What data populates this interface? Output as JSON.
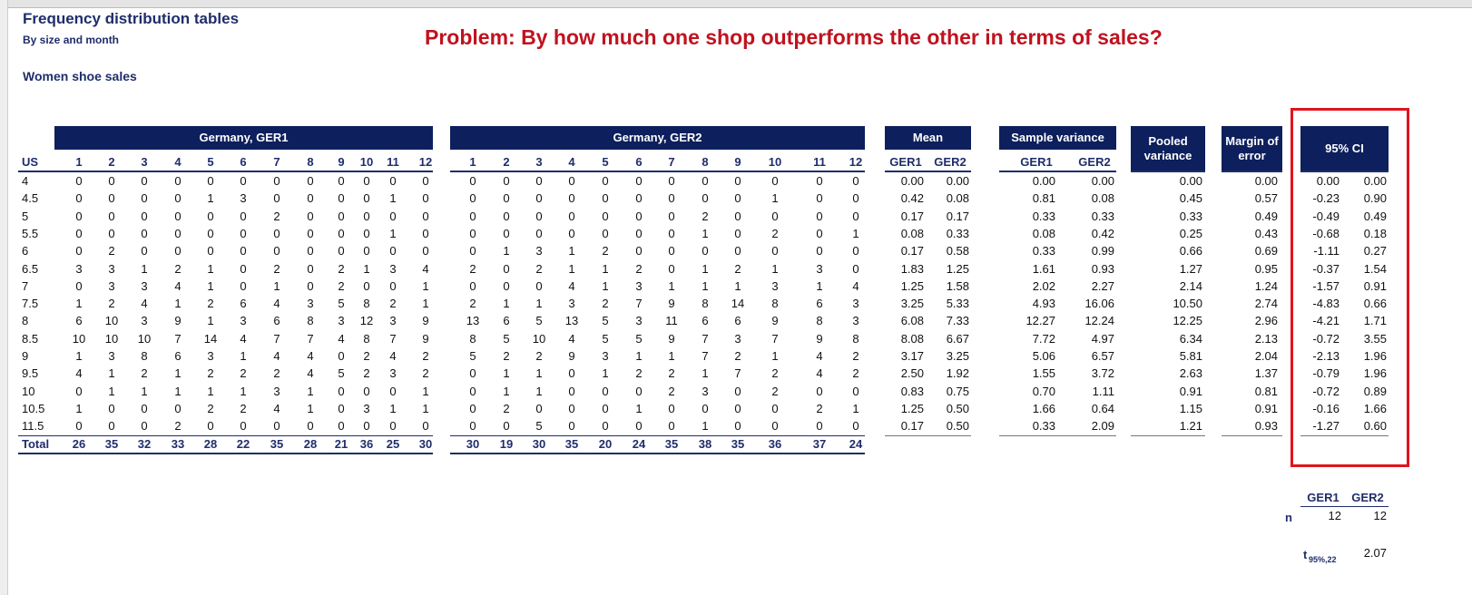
{
  "header": {
    "title": "Frequency distribution tables",
    "subtitle": "By size and month",
    "problem": "Problem: By how much one shop outperforms the other in terms of sales?",
    "section": "Women shoe sales"
  },
  "table": {
    "groups": {
      "ger1": "Germany, GER1",
      "ger2": "Germany, GER2",
      "mean": "Mean",
      "variance": "Sample variance",
      "pooled": "Pooled variance",
      "margin": "Margin of error",
      "ci": "95% CI"
    },
    "size_header": "US",
    "months": [
      "1",
      "2",
      "3",
      "4",
      "5",
      "6",
      "7",
      "8",
      "9",
      "10",
      "11",
      "12"
    ],
    "sub_headers": [
      "GER1",
      "GER2"
    ],
    "rows": [
      {
        "size": "4",
        "ger1": [
          "0",
          "0",
          "0",
          "0",
          "0",
          "0",
          "0",
          "0",
          "0",
          "0",
          "0",
          "0"
        ],
        "ger2": [
          "0",
          "0",
          "0",
          "0",
          "0",
          "0",
          "0",
          "0",
          "0",
          "0",
          "0",
          "0"
        ],
        "mean": [
          "0.00",
          "0.00"
        ],
        "variance": [
          "0.00",
          "0.00"
        ],
        "pooled": "0.00",
        "margin": "0.00",
        "ci": [
          "0.00",
          "0.00"
        ]
      },
      {
        "size": "4.5",
        "ger1": [
          "0",
          "0",
          "0",
          "0",
          "1",
          "3",
          "0",
          "0",
          "0",
          "0",
          "1",
          "0"
        ],
        "ger2": [
          "0",
          "0",
          "0",
          "0",
          "0",
          "0",
          "0",
          "0",
          "0",
          "1",
          "0",
          "0"
        ],
        "mean": [
          "0.42",
          "0.08"
        ],
        "variance": [
          "0.81",
          "0.08"
        ],
        "pooled": "0.45",
        "margin": "0.57",
        "ci": [
          "-0.23",
          "0.90"
        ]
      },
      {
        "size": "5",
        "ger1": [
          "0",
          "0",
          "0",
          "0",
          "0",
          "0",
          "2",
          "0",
          "0",
          "0",
          "0",
          "0"
        ],
        "ger2": [
          "0",
          "0",
          "0",
          "0",
          "0",
          "0",
          "0",
          "2",
          "0",
          "0",
          "0",
          "0"
        ],
        "mean": [
          "0.17",
          "0.17"
        ],
        "variance": [
          "0.33",
          "0.33"
        ],
        "pooled": "0.33",
        "margin": "0.49",
        "ci": [
          "-0.49",
          "0.49"
        ]
      },
      {
        "size": "5.5",
        "ger1": [
          "0",
          "0",
          "0",
          "0",
          "0",
          "0",
          "0",
          "0",
          "0",
          "0",
          "1",
          "0"
        ],
        "ger2": [
          "0",
          "0",
          "0",
          "0",
          "0",
          "0",
          "0",
          "1",
          "0",
          "2",
          "0",
          "1"
        ],
        "mean": [
          "0.08",
          "0.33"
        ],
        "variance": [
          "0.08",
          "0.42"
        ],
        "pooled": "0.25",
        "margin": "0.43",
        "ci": [
          "-0.68",
          "0.18"
        ]
      },
      {
        "size": "6",
        "ger1": [
          "0",
          "2",
          "0",
          "0",
          "0",
          "0",
          "0",
          "0",
          "0",
          "0",
          "0",
          "0"
        ],
        "ger2": [
          "0",
          "1",
          "3",
          "1",
          "2",
          "0",
          "0",
          "0",
          "0",
          "0",
          "0",
          "0"
        ],
        "mean": [
          "0.17",
          "0.58"
        ],
        "variance": [
          "0.33",
          "0.99"
        ],
        "pooled": "0.66",
        "margin": "0.69",
        "ci": [
          "-1.11",
          "0.27"
        ]
      },
      {
        "size": "6.5",
        "ger1": [
          "3",
          "3",
          "1",
          "2",
          "1",
          "0",
          "2",
          "0",
          "2",
          "1",
          "3",
          "4"
        ],
        "ger2": [
          "2",
          "0",
          "2",
          "1",
          "1",
          "2",
          "0",
          "1",
          "2",
          "1",
          "3",
          "0"
        ],
        "mean": [
          "1.83",
          "1.25"
        ],
        "variance": [
          "1.61",
          "0.93"
        ],
        "pooled": "1.27",
        "margin": "0.95",
        "ci": [
          "-0.37",
          "1.54"
        ]
      },
      {
        "size": "7",
        "ger1": [
          "0",
          "3",
          "3",
          "4",
          "1",
          "0",
          "1",
          "0",
          "2",
          "0",
          "0",
          "1"
        ],
        "ger2": [
          "0",
          "0",
          "0",
          "4",
          "1",
          "3",
          "1",
          "1",
          "1",
          "3",
          "1",
          "4"
        ],
        "mean": [
          "1.25",
          "1.58"
        ],
        "variance": [
          "2.02",
          "2.27"
        ],
        "pooled": "2.14",
        "margin": "1.24",
        "ci": [
          "-1.57",
          "0.91"
        ]
      },
      {
        "size": "7.5",
        "ger1": [
          "1",
          "2",
          "4",
          "1",
          "2",
          "6",
          "4",
          "3",
          "5",
          "8",
          "2",
          "1"
        ],
        "ger2": [
          "2",
          "1",
          "1",
          "3",
          "2",
          "7",
          "9",
          "8",
          "14",
          "8",
          "6",
          "3"
        ],
        "mean": [
          "3.25",
          "5.33"
        ],
        "variance": [
          "4.93",
          "16.06"
        ],
        "pooled": "10.50",
        "margin": "2.74",
        "ci": [
          "-4.83",
          "0.66"
        ]
      },
      {
        "size": "8",
        "ger1": [
          "6",
          "10",
          "3",
          "9",
          "1",
          "3",
          "6",
          "8",
          "3",
          "12",
          "3",
          "9"
        ],
        "ger2": [
          "13",
          "6",
          "5",
          "13",
          "5",
          "3",
          "11",
          "6",
          "6",
          "9",
          "8",
          "3"
        ],
        "mean": [
          "6.08",
          "7.33"
        ],
        "variance": [
          "12.27",
          "12.24"
        ],
        "pooled": "12.25",
        "margin": "2.96",
        "ci": [
          "-4.21",
          "1.71"
        ]
      },
      {
        "size": "8.5",
        "ger1": [
          "10",
          "10",
          "10",
          "7",
          "14",
          "4",
          "7",
          "7",
          "4",
          "8",
          "7",
          "9"
        ],
        "ger2": [
          "8",
          "5",
          "10",
          "4",
          "5",
          "5",
          "9",
          "7",
          "3",
          "7",
          "9",
          "8"
        ],
        "mean": [
          "8.08",
          "6.67"
        ],
        "variance": [
          "7.72",
          "4.97"
        ],
        "pooled": "6.34",
        "margin": "2.13",
        "ci": [
          "-0.72",
          "3.55"
        ]
      },
      {
        "size": "9",
        "ger1": [
          "1",
          "3",
          "8",
          "6",
          "3",
          "1",
          "4",
          "4",
          "0",
          "2",
          "4",
          "2"
        ],
        "ger2": [
          "5",
          "2",
          "2",
          "9",
          "3",
          "1",
          "1",
          "7",
          "2",
          "1",
          "4",
          "2"
        ],
        "mean": [
          "3.17",
          "3.25"
        ],
        "variance": [
          "5.06",
          "6.57"
        ],
        "pooled": "5.81",
        "margin": "2.04",
        "ci": [
          "-2.13",
          "1.96"
        ]
      },
      {
        "size": "9.5",
        "ger1": [
          "4",
          "1",
          "2",
          "1",
          "2",
          "2",
          "2",
          "4",
          "5",
          "2",
          "3",
          "2"
        ],
        "ger2": [
          "0",
          "1",
          "1",
          "0",
          "1",
          "2",
          "2",
          "1",
          "7",
          "2",
          "4",
          "2"
        ],
        "mean": [
          "2.50",
          "1.92"
        ],
        "variance": [
          "1.55",
          "3.72"
        ],
        "pooled": "2.63",
        "margin": "1.37",
        "ci": [
          "-0.79",
          "1.96"
        ]
      },
      {
        "size": "10",
        "ger1": [
          "0",
          "1",
          "1",
          "1",
          "1",
          "1",
          "3",
          "1",
          "0",
          "0",
          "0",
          "1"
        ],
        "ger2": [
          "0",
          "1",
          "1",
          "0",
          "0",
          "0",
          "2",
          "3",
          "0",
          "2",
          "0",
          "0"
        ],
        "mean": [
          "0.83",
          "0.75"
        ],
        "variance": [
          "0.70",
          "1.11"
        ],
        "pooled": "0.91",
        "margin": "0.81",
        "ci": [
          "-0.72",
          "0.89"
        ]
      },
      {
        "size": "10.5",
        "ger1": [
          "1",
          "0",
          "0",
          "0",
          "2",
          "2",
          "4",
          "1",
          "0",
          "3",
          "1",
          "1"
        ],
        "ger2": [
          "0",
          "2",
          "0",
          "0",
          "0",
          "1",
          "0",
          "0",
          "0",
          "0",
          "2",
          "1"
        ],
        "mean": [
          "1.25",
          "0.50"
        ],
        "variance": [
          "1.66",
          "0.64"
        ],
        "pooled": "1.15",
        "margin": "0.91",
        "ci": [
          "-0.16",
          "1.66"
        ]
      },
      {
        "size": "11.5",
        "ger1": [
          "0",
          "0",
          "0",
          "2",
          "0",
          "0",
          "0",
          "0",
          "0",
          "0",
          "0",
          "0"
        ],
        "ger2": [
          "0",
          "0",
          "5",
          "0",
          "0",
          "0",
          "0",
          "1",
          "0",
          "0",
          "0",
          "0"
        ],
        "mean": [
          "0.17",
          "0.50"
        ],
        "variance": [
          "0.33",
          "2.09"
        ],
        "pooled": "1.21",
        "margin": "0.93",
        "ci": [
          "-1.27",
          "0.60"
        ]
      }
    ],
    "total": {
      "label": "Total",
      "ger1": [
        "26",
        "35",
        "32",
        "33",
        "28",
        "22",
        "35",
        "28",
        "21",
        "36",
        "25",
        "30"
      ],
      "ger2": [
        "30",
        "19",
        "30",
        "35",
        "20",
        "24",
        "35",
        "38",
        "35",
        "36",
        "37",
        "24"
      ]
    }
  },
  "summary": {
    "headers": [
      "GER1",
      "GER2"
    ],
    "n_label": "n",
    "n": [
      "12",
      "12"
    ],
    "t_label": "t",
    "t_sub": "95%,22",
    "t": "2.07"
  }
}
